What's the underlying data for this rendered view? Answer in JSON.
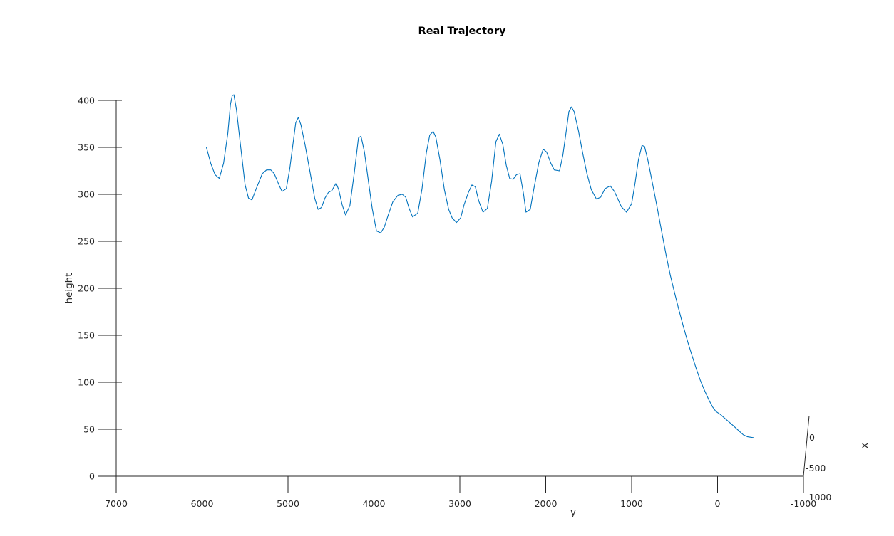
{
  "chart_data": {
    "type": "line",
    "title": "Real Trajectory",
    "xlabel": "y",
    "ylabel": "height",
    "zlabel": "x",
    "ylim": [
      0,
      400
    ],
    "yticks": [
      {
        "value": 0,
        "label": "0"
      },
      {
        "value": 50,
        "label": "50"
      },
      {
        "value": 100,
        "label": "100"
      },
      {
        "value": 150,
        "label": "150"
      },
      {
        "value": 200,
        "label": "200"
      },
      {
        "value": 250,
        "label": "250"
      },
      {
        "value": 300,
        "label": "300"
      },
      {
        "value": 350,
        "label": "350"
      },
      {
        "value": 400,
        "label": "400"
      }
    ],
    "xlim": [
      7000,
      -1000
    ],
    "xticks": [
      {
        "value": 7000,
        "label": "7000"
      },
      {
        "value": 6000,
        "label": "6000"
      },
      {
        "value": 5000,
        "label": "5000"
      },
      {
        "value": 4000,
        "label": "4000"
      },
      {
        "value": 3000,
        "label": "3000"
      },
      {
        "value": 2000,
        "label": "2000"
      },
      {
        "value": 1000,
        "label": "1000"
      },
      {
        "value": 0,
        "label": "0"
      },
      {
        "value": -1000,
        "label": "-1000"
      }
    ],
    "zticks": [
      {
        "value": 0,
        "label": "0"
      },
      {
        "value": -500,
        "label": "-500"
      },
      {
        "value": -1000,
        "label": "-1000"
      }
    ],
    "grid": false,
    "line_color": "#0072bd",
    "series": [
      {
        "points": [
          [
            5950,
            350
          ],
          [
            5900,
            333
          ],
          [
            5850,
            321
          ],
          [
            5800,
            317
          ],
          [
            5750,
            333
          ],
          [
            5700,
            365
          ],
          [
            5670,
            396
          ],
          [
            5650,
            405
          ],
          [
            5630,
            406
          ],
          [
            5600,
            390
          ],
          [
            5550,
            350
          ],
          [
            5500,
            310
          ],
          [
            5460,
            296
          ],
          [
            5420,
            294
          ],
          [
            5370,
            306
          ],
          [
            5300,
            322
          ],
          [
            5250,
            326
          ],
          [
            5200,
            326
          ],
          [
            5160,
            322
          ],
          [
            5100,
            309
          ],
          [
            5070,
            303
          ],
          [
            5020,
            306
          ],
          [
            4980,
            327
          ],
          [
            4940,
            355
          ],
          [
            4910,
            376
          ],
          [
            4880,
            382
          ],
          [
            4850,
            374
          ],
          [
            4800,
            352
          ],
          [
            4740,
            322
          ],
          [
            4690,
            296
          ],
          [
            4650,
            284
          ],
          [
            4610,
            286
          ],
          [
            4570,
            296
          ],
          [
            4530,
            302
          ],
          [
            4490,
            304
          ],
          [
            4440,
            312
          ],
          [
            4410,
            305
          ],
          [
            4370,
            289
          ],
          [
            4330,
            278
          ],
          [
            4280,
            288
          ],
          [
            4230,
            322
          ],
          [
            4180,
            360
          ],
          [
            4150,
            362
          ],
          [
            4110,
            345
          ],
          [
            4060,
            311
          ],
          [
            4020,
            285
          ],
          [
            3970,
            261
          ],
          [
            3920,
            259
          ],
          [
            3880,
            265
          ],
          [
            3830,
            279
          ],
          [
            3780,
            292
          ],
          [
            3720,
            299
          ],
          [
            3670,
            300
          ],
          [
            3630,
            297
          ],
          [
            3590,
            285
          ],
          [
            3550,
            276
          ],
          [
            3490,
            280
          ],
          [
            3440,
            306
          ],
          [
            3390,
            344
          ],
          [
            3350,
            363
          ],
          [
            3310,
            367
          ],
          [
            3280,
            361
          ],
          [
            3230,
            336
          ],
          [
            3180,
            305
          ],
          [
            3130,
            284
          ],
          [
            3090,
            275
          ],
          [
            3040,
            270
          ],
          [
            2990,
            275
          ],
          [
            2950,
            289
          ],
          [
            2900,
            302
          ],
          [
            2860,
            310
          ],
          [
            2820,
            308
          ],
          [
            2780,
            293
          ],
          [
            2730,
            281
          ],
          [
            2680,
            285
          ],
          [
            2630,
            314
          ],
          [
            2580,
            356
          ],
          [
            2540,
            364
          ],
          [
            2500,
            353
          ],
          [
            2460,
            331
          ],
          [
            2420,
            317
          ],
          [
            2380,
            316
          ],
          [
            2340,
            321
          ],
          [
            2300,
            322
          ],
          [
            2260,
            301
          ],
          [
            2230,
            281
          ],
          [
            2180,
            284
          ],
          [
            2140,
            305
          ],
          [
            2080,
            334
          ],
          [
            2030,
            348
          ],
          [
            1990,
            345
          ],
          [
            1940,
            333
          ],
          [
            1900,
            326
          ],
          [
            1840,
            325
          ],
          [
            1800,
            342
          ],
          [
            1760,
            368
          ],
          [
            1730,
            388
          ],
          [
            1700,
            393
          ],
          [
            1670,
            388
          ],
          [
            1620,
            368
          ],
          [
            1570,
            344
          ],
          [
            1520,
            322
          ],
          [
            1470,
            305
          ],
          [
            1410,
            295
          ],
          [
            1360,
            297
          ],
          [
            1310,
            306
          ],
          [
            1250,
            309
          ],
          [
            1200,
            303
          ],
          [
            1160,
            295
          ],
          [
            1120,
            287
          ],
          [
            1060,
            281
          ],
          [
            1000,
            290
          ],
          [
            960,
            312
          ],
          [
            920,
            337
          ],
          [
            880,
            352
          ],
          [
            850,
            351
          ],
          [
            810,
            336
          ],
          [
            760,
            313
          ],
          [
            700,
            285
          ],
          [
            650,
            260
          ],
          [
            600,
            236
          ],
          [
            550,
            214
          ],
          [
            500,
            195
          ],
          [
            450,
            177
          ],
          [
            400,
            160
          ],
          [
            350,
            144
          ],
          [
            300,
            129
          ],
          [
            250,
            115
          ],
          [
            200,
            102
          ],
          [
            150,
            91
          ],
          [
            100,
            81
          ],
          [
            60,
            74
          ],
          [
            20,
            69
          ],
          [
            -30,
            66
          ],
          [
            -80,
            62
          ],
          [
            -130,
            58
          ],
          [
            -180,
            54
          ],
          [
            -240,
            49
          ],
          [
            -300,
            44
          ],
          [
            -350,
            42
          ],
          [
            -420,
            41
          ]
        ]
      }
    ]
  }
}
